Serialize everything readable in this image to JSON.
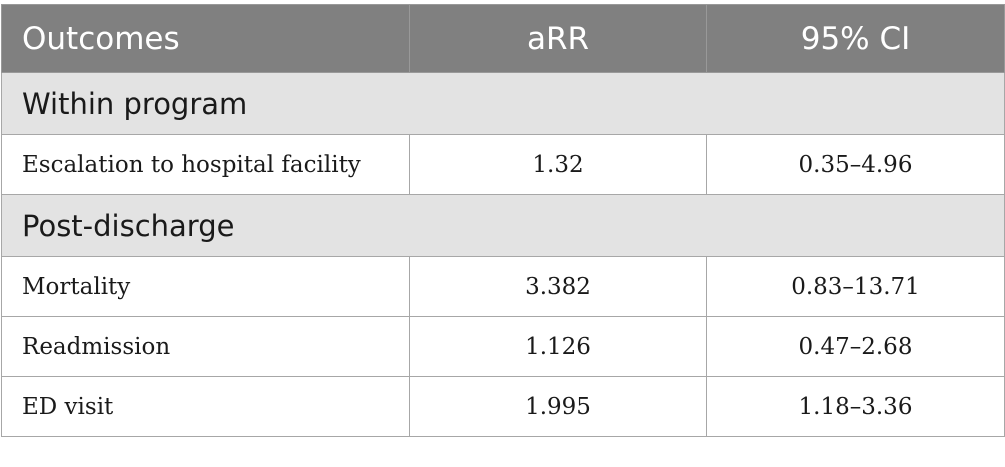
{
  "table": {
    "headers": [
      "Outcomes",
      "aRR",
      "95% CI"
    ],
    "sections": [
      {
        "title": "Within program",
        "rows": [
          {
            "outcome": "Escalation to hospital facility",
            "arr": "1.32",
            "ci": "0.35–4.96"
          }
        ]
      },
      {
        "title": "Post-discharge",
        "rows": [
          {
            "outcome": "Mortality",
            "arr": "3.382",
            "ci": "0.83–13.71"
          },
          {
            "outcome": "Readmission",
            "arr": "1.126",
            "ci": "0.47–2.68"
          },
          {
            "outcome": "ED visit",
            "arr": "1.995",
            "ci": "1.18–3.36"
          }
        ]
      }
    ]
  }
}
